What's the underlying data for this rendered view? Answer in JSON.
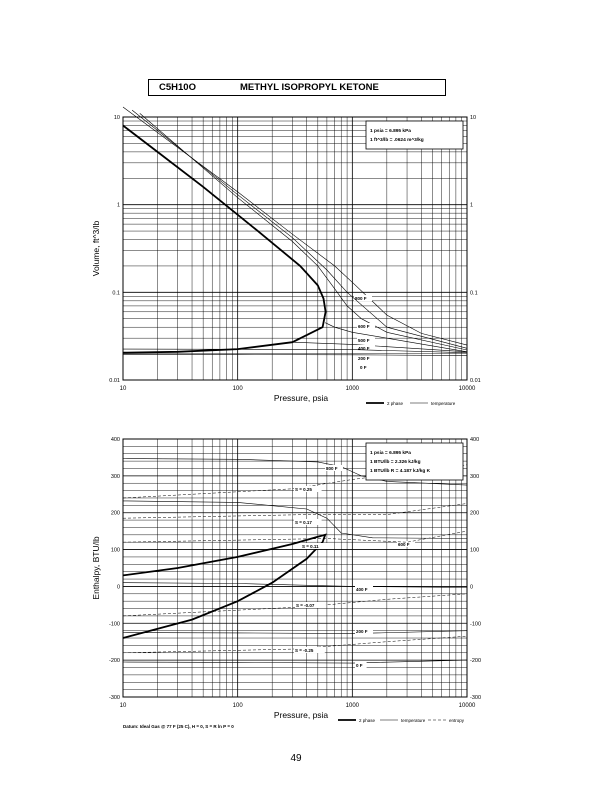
{
  "header": {
    "formula": "C5H10O",
    "compound": "METHYL ISOPROPYL KETONE"
  },
  "page_number": "49",
  "chart_data": [
    {
      "type": "line",
      "xlabel": "Pressure,  psia",
      "ylabel": "Volume, ft^3/lb",
      "x_scale": "log",
      "y_scale": "log",
      "xlim": [
        10,
        10000
      ],
      "ylim": [
        0.01,
        10
      ],
      "grid": true,
      "x_ticks": [
        "10",
        "100",
        "1000",
        "10000"
      ],
      "y_ticks": [
        "0.01",
        "0.1",
        "1",
        "10"
      ],
      "conversions": [
        "1 psia  =  6.895 kPa",
        "1 ft^3/lb  =  .0624 m^3/kg"
      ],
      "legend": [
        "2 phase",
        "temperature"
      ],
      "legend_position": "bottom-right",
      "series": [
        {
          "name": "2 phase",
          "x": [
            10,
            30,
            100,
            300,
            550,
            585,
            560,
            500,
            350,
            150,
            50,
            20,
            10
          ],
          "y": [
            0.0205,
            0.021,
            0.0225,
            0.027,
            0.04,
            0.06,
            0.085,
            0.12,
            0.2,
            0.5,
            1.6,
            4,
            8
          ]
        },
        {
          "name": "800 F",
          "label": "800 F",
          "x": [
            10,
            100,
            300,
            700,
            1000,
            2000,
            4000,
            10000
          ],
          "y": [
            13,
            1.4,
            0.46,
            0.2,
            0.13,
            0.055,
            0.034,
            0.025
          ]
        },
        {
          "name": "700 F",
          "x": [
            12,
            100,
            300,
            600,
            900,
            2000,
            10000
          ],
          "y": [
            12,
            1.3,
            0.42,
            0.18,
            0.1,
            0.04,
            0.023
          ]
        },
        {
          "name": "600 F",
          "label": "600 F",
          "x": [
            14,
            100,
            300,
            500,
            700,
            900,
            1200,
            2000,
            10000
          ],
          "y": [
            11,
            1.2,
            0.38,
            0.2,
            0.11,
            0.07,
            0.05,
            0.035,
            0.022
          ]
        },
        {
          "name": "500 F",
          "label": "500 F",
          "x": [
            580,
            700,
            1000,
            2000,
            10000
          ],
          "y": [
            0.045,
            0.04,
            0.035,
            0.03,
            0.021
          ]
        },
        {
          "name": "400 F",
          "label": "400 F",
          "x": [
            300,
            1000,
            2000,
            10000
          ],
          "y": [
            0.027,
            0.0255,
            0.024,
            0.021
          ]
        },
        {
          "name": "200 F",
          "label": "200 F",
          "x": [
            10,
            100,
            1000,
            10000
          ],
          "y": [
            0.0225,
            0.0224,
            0.0222,
            0.0205
          ]
        },
        {
          "name": "0 F",
          "label": "0 F",
          "x": [
            10,
            100,
            1000,
            10000
          ],
          "y": [
            0.0195,
            0.0195,
            0.0194,
            0.019
          ]
        }
      ]
    },
    {
      "type": "line",
      "xlabel": "Pressure,  psia",
      "ylabel": "Enthalpy, BTU/lb",
      "x_scale": "log",
      "y_scale": "linear",
      "xlim": [
        10,
        10000
      ],
      "ylim": [
        -300,
        400
      ],
      "grid": true,
      "x_ticks": [
        "10",
        "100",
        "1000",
        "10000"
      ],
      "y_ticks": [
        "-300",
        "-200",
        "-100",
        "0",
        "100",
        "200",
        "300",
        "400"
      ],
      "conversions": [
        "1 psia  =  6.895 kPa",
        "1 BTU/lb  =  2.326 kJ/kg",
        "1 BTU/lb R  =  4.187 kJ/kg K"
      ],
      "datum": "Datum: Ideal Gas @ 77 F (25 C),  H  =  0,  S  =  R ln P  =  0",
      "legend": [
        "2 phase",
        "temperature",
        "entropy"
      ],
      "legend_position": "bottom-right",
      "series": [
        {
          "name": "2 phase",
          "x": [
            10,
            30,
            100,
            300,
            500,
            580,
            550,
            400,
            200,
            100,
            40,
            10
          ],
          "y": [
            30,
            50,
            80,
            115,
            135,
            140,
            120,
            75,
            10,
            -40,
            -90,
            -140
          ]
        },
        {
          "name": "800 F",
          "label": "800 F",
          "x": [
            10,
            100,
            500,
            800,
            1200,
            2000,
            10000
          ],
          "y": [
            347,
            345,
            338,
            325,
            300,
            285,
            275
          ]
        },
        {
          "name": "600 F",
          "label": "600 F",
          "x": [
            10,
            100,
            400,
            600,
            800,
            1500,
            10000
          ],
          "y": [
            232,
            228,
            210,
            185,
            145,
            132,
            130
          ]
        },
        {
          "name": "400 F",
          "label": "400 F",
          "x": [
            10,
            100,
            1000,
            10000
          ],
          "y": [
            10,
            8,
            0,
            -3
          ]
        },
        {
          "name": "200 F",
          "label": "200 F",
          "x": [
            10,
            100,
            1000,
            10000
          ],
          "y": [
            -125,
            -126,
            -128,
            -120
          ]
        },
        {
          "name": "0 F",
          "label": "0 F",
          "x": [
            10,
            100,
            1000,
            10000
          ],
          "y": [
            -205,
            -206,
            -208,
            -200
          ]
        },
        {
          "name": "S = 0.25",
          "label": "S = 0.25",
          "x": [
            10,
            300,
            1000,
            10000
          ],
          "y": [
            240,
            265,
            290,
            330
          ]
        },
        {
          "name": "S = 0.17",
          "label": "S = 0.17",
          "x": [
            10,
            400,
            2000,
            10000
          ],
          "y": [
            185,
            195,
            195,
            225
          ]
        },
        {
          "name": "S = 0.11",
          "label": "S = 0.11",
          "x": [
            10,
            600,
            3000,
            10000
          ],
          "y": [
            120,
            130,
            120,
            150
          ]
        },
        {
          "name": "S = -0.07",
          "label": "S = -0.07",
          "x": [
            10,
            400,
            2000,
            10000
          ],
          "y": [
            -80,
            -55,
            -35,
            -20
          ]
        },
        {
          "name": "S = -0.25",
          "label": "S = -0.25",
          "x": [
            10,
            300,
            2000,
            10000
          ],
          "y": [
            -180,
            -170,
            -150,
            -135
          ]
        }
      ]
    }
  ]
}
